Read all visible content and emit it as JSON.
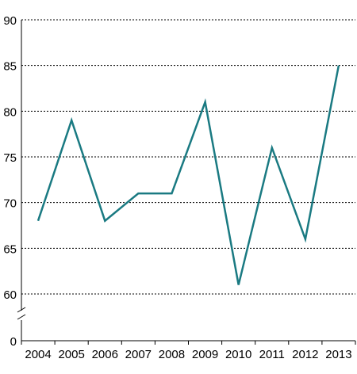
{
  "chart_data": {
    "type": "line",
    "title": "",
    "xlabel": "",
    "ylabel": "",
    "x": [
      "2004",
      "2005",
      "2006",
      "2007",
      "2008",
      "2009",
      "2010",
      "2011",
      "2012",
      "2013"
    ],
    "series": [
      {
        "values": [
          68,
          79,
          68,
          71,
          71,
          81,
          61,
          76,
          66,
          85
        ]
      }
    ],
    "y_ticks": [
      0,
      60,
      65,
      70,
      75,
      80,
      85,
      90
    ],
    "ylim": [
      60,
      90
    ],
    "y_axis_break": true,
    "grid": "horizontal-dotted",
    "colors": {
      "line": "#1a7a82",
      "grid": "#000000",
      "axis": "#000000"
    }
  }
}
